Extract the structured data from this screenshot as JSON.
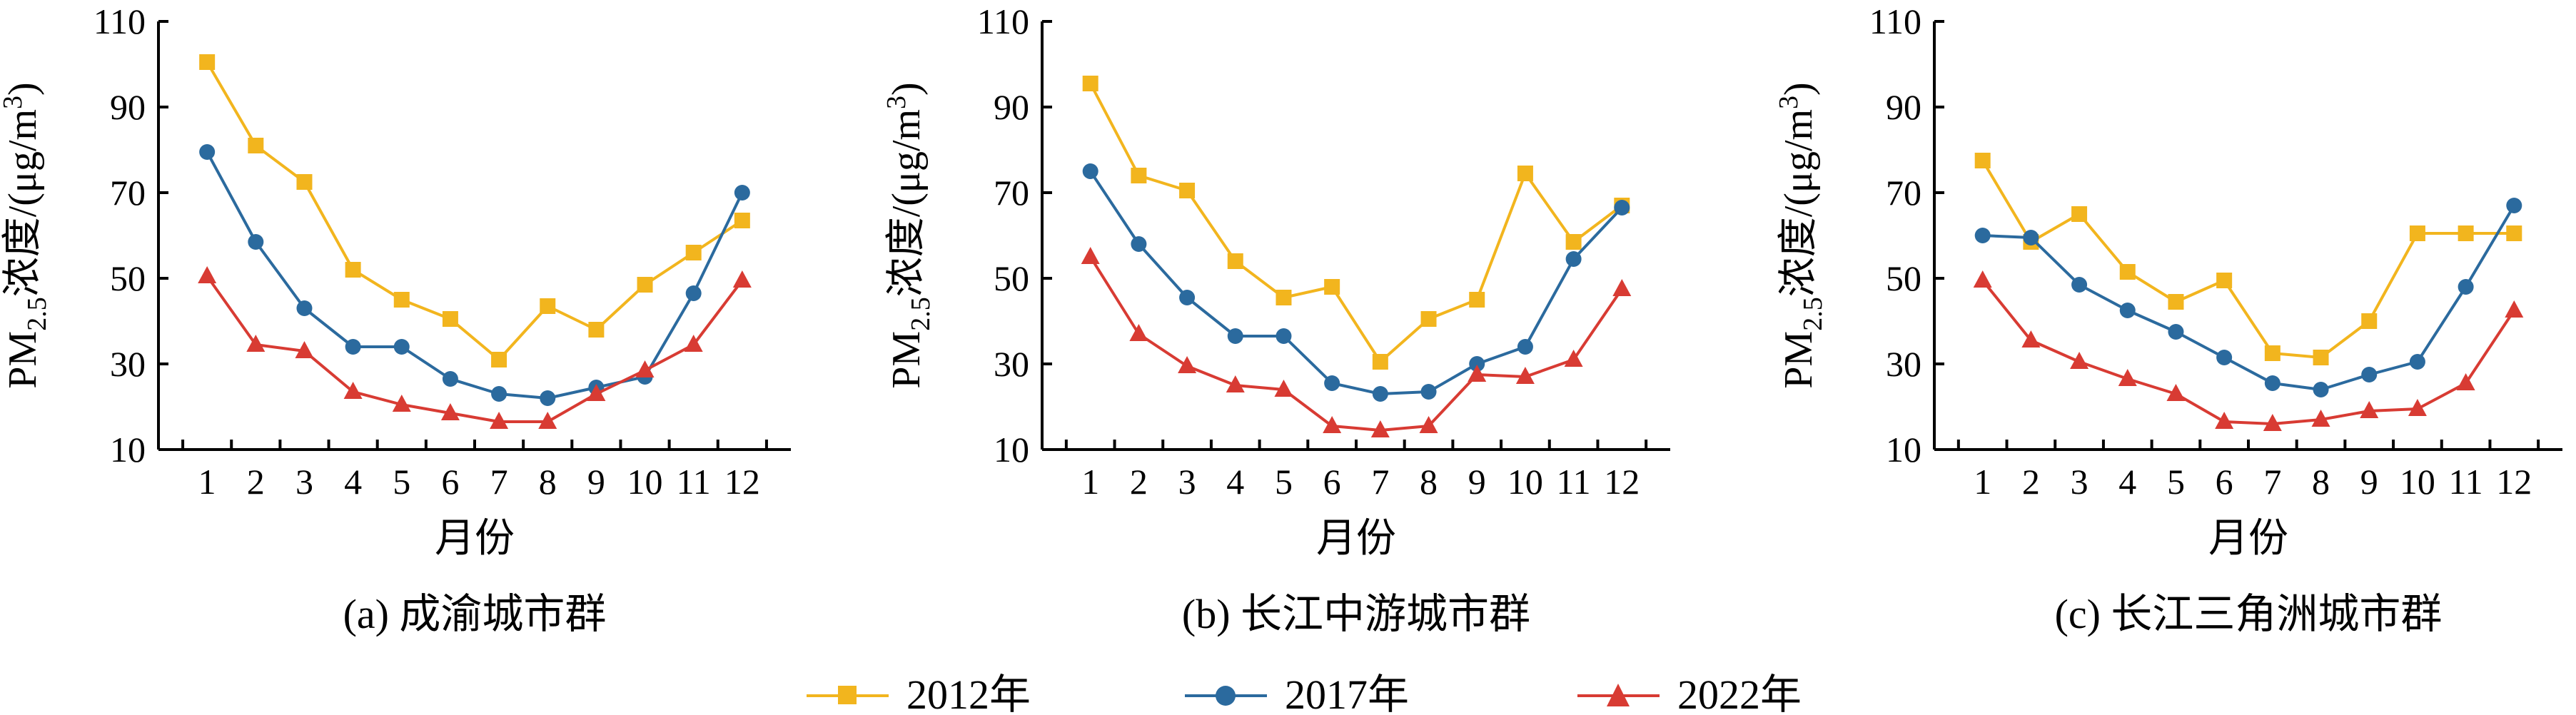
{
  "chart_data": [
    {
      "type": "line",
      "caption": "(a) 成渝城市群",
      "xlabel": "月份",
      "ylabel": "PM2.5浓度/(μg/m3)",
      "ylabel_parts": {
        "pm": "PM",
        "sub": "2.5",
        "mid": "浓度/(μg/m",
        "sup": "3",
        "end": ")"
      },
      "x": [
        1,
        2,
        3,
        4,
        5,
        6,
        7,
        8,
        9,
        10,
        11,
        12
      ],
      "xlim": [
        0,
        13
      ],
      "ylim": [
        10,
        110
      ],
      "yticks": [
        10,
        30,
        50,
        70,
        90,
        110
      ],
      "series": [
        {
          "name": "2012年",
          "values": [
            100.5,
            81,
            72.5,
            52,
            45,
            40.5,
            31,
            43.5,
            38,
            48.5,
            56,
            63.5
          ]
        },
        {
          "name": "2017年",
          "values": [
            79.5,
            58.5,
            43,
            34,
            34,
            26.5,
            23,
            22,
            24.5,
            27,
            46.5,
            70
          ]
        },
        {
          "name": "2022年",
          "values": [
            50.5,
            34.5,
            33,
            23.5,
            20.5,
            18.5,
            16.5,
            16.5,
            23,
            28.5,
            34.5,
            49.5
          ]
        }
      ]
    },
    {
      "type": "line",
      "caption": "(b) 长江中游城市群",
      "xlabel": "月份",
      "ylabel": "PM2.5浓度/(μg/m3)",
      "ylabel_parts": {
        "pm": "PM",
        "sub": "2.5",
        "mid": "浓度/(μg/m",
        "sup": "3",
        "end": ")"
      },
      "x": [
        1,
        2,
        3,
        4,
        5,
        6,
        7,
        8,
        9,
        10,
        11,
        12
      ],
      "xlim": [
        0,
        13
      ],
      "ylim": [
        10,
        110
      ],
      "yticks": [
        10,
        30,
        50,
        70,
        90,
        110
      ],
      "series": [
        {
          "name": "2012年",
          "values": [
            95.5,
            74,
            70.5,
            54,
            45.5,
            48,
            30.5,
            40.5,
            45,
            74.5,
            58.5,
            67
          ]
        },
        {
          "name": "2017年",
          "values": [
            75,
            58,
            45.5,
            36.5,
            36.5,
            25.5,
            23,
            23.5,
            30,
            34,
            54.5,
            66.5
          ]
        },
        {
          "name": "2022年",
          "values": [
            55,
            37,
            29.5,
            25,
            24,
            15.5,
            14.5,
            15.5,
            27.5,
            27,
            31,
            47.5
          ]
        }
      ]
    },
    {
      "type": "line",
      "caption": "(c) 长江三角洲城市群",
      "xlabel": "月份",
      "ylabel": "PM2.5浓度/(μg/m3)",
      "ylabel_parts": {
        "pm": "PM",
        "sub": "2.5",
        "mid": "浓度/(μg/m",
        "sup": "3",
        "end": ")"
      },
      "x": [
        1,
        2,
        3,
        4,
        5,
        6,
        7,
        8,
        9,
        10,
        11,
        12
      ],
      "xlim": [
        0,
        13
      ],
      "ylim": [
        10,
        110
      ],
      "yticks": [
        10,
        30,
        50,
        70,
        90,
        110
      ],
      "series": [
        {
          "name": "2012年",
          "values": [
            77.5,
            58.5,
            65,
            51.5,
            44.5,
            49.5,
            32.5,
            31.5,
            40,
            60.5,
            60.5,
            60.5
          ]
        },
        {
          "name": "2017年",
          "values": [
            60,
            59.5,
            48.5,
            42.5,
            37.5,
            31.5,
            25.5,
            24,
            27.5,
            30.5,
            48,
            67
          ]
        },
        {
          "name": "2022年",
          "values": [
            49.5,
            35.5,
            30.5,
            26.5,
            23,
            16.5,
            16,
            17,
            19,
            19.5,
            25.5,
            42.5
          ]
        }
      ]
    }
  ],
  "legend": {
    "placement": "bottom",
    "items": [
      {
        "label": "2012年",
        "marker": "square",
        "color": "#F2B51E"
      },
      {
        "label": "2017年",
        "marker": "circle",
        "color": "#2B6A9E"
      },
      {
        "label": "2022年",
        "marker": "triangle",
        "color": "#D83B33"
      }
    ]
  },
  "colors": {
    "2012": "#F2B51E",
    "2017": "#2B6A9E",
    "2022": "#D83B33",
    "axis": "#000000"
  }
}
